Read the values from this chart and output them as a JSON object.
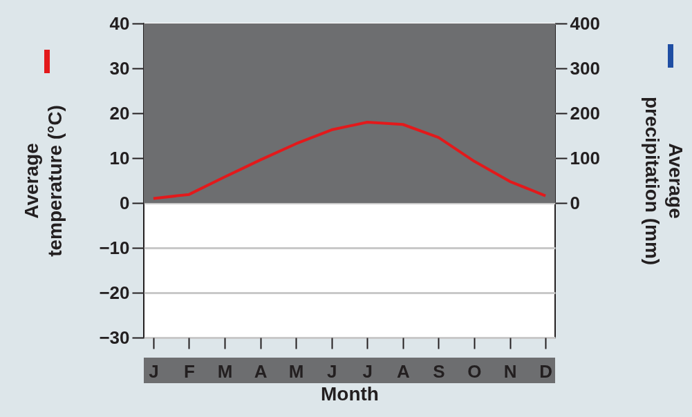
{
  "chart_data": {
    "type": "line",
    "categories": [
      "J",
      "F",
      "M",
      "A",
      "M",
      "J",
      "J",
      "A",
      "S",
      "O",
      "N",
      "D"
    ],
    "xlabel": "Month",
    "ylabel": "Average temperature (°C)",
    "y2label": "Average precipitation (mm)",
    "series": [
      {
        "color": "#e3191b",
        "values": [
          1.0,
          1.9,
          5.8,
          9.6,
          13.2,
          16.3,
          18.0,
          17.5,
          14.6,
          9.3,
          4.8,
          1.6
        ]
      },
      {
        "color": "#1f4ea3",
        "axis": "y2",
        "values": [
          null,
          null,
          null,
          null,
          null,
          null,
          null,
          null,
          null,
          null,
          null,
          null
        ]
      }
    ],
    "ylim": [
      -30,
      40
    ],
    "yticks": [
      -30,
      -20,
      -10,
      0,
      10,
      20,
      30,
      40
    ],
    "y2lim": [
      -300,
      400
    ],
    "y2ticks": [
      0,
      100,
      200,
      300,
      400
    ],
    "bands": [
      {
        "axis": "y",
        "from": 0,
        "to": 40,
        "color": "#6d6e70"
      }
    ],
    "grid": "y"
  }
}
